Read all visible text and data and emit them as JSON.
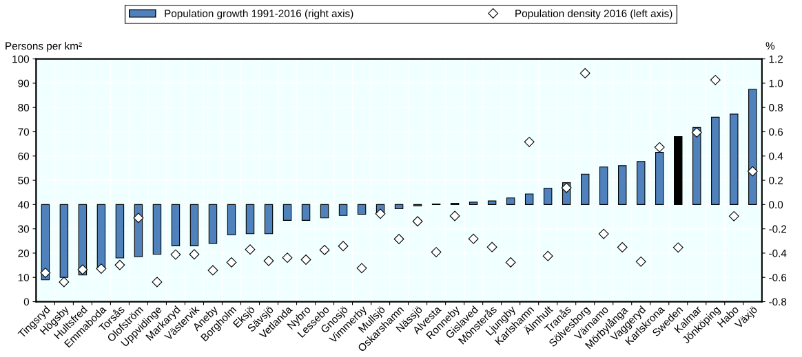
{
  "chart_data": {
    "type": "bar",
    "ylabel": "Persons per km²",
    "y2label": "%",
    "categories": [
      "Tingsryd",
      "Högsby",
      "Hultsfred",
      "Emmaboda",
      "Torsås",
      "Olofström",
      "Uppvidinge",
      "Markaryd",
      "Västervik",
      "Aneby",
      "Borgholm",
      "Eksjö",
      "Sävsjö",
      "Vetlanda",
      "Nybro",
      "Lessebo",
      "Gnosjö",
      "Vimmerby",
      "Mullsjö",
      "Oskarshamn",
      "Nässjö",
      "Alvesta",
      "Ronneby",
      "Gislaved",
      "Mönsterås",
      "Ljungby",
      "Karlshamn",
      "Älmhult",
      "Tranås",
      "Sölvesborg",
      "Värnamo",
      "Mörbylånga",
      "Vaggeryd",
      "Karlskrona",
      "Sweden",
      "Kalmar",
      "Jönköping",
      "Habo",
      "Växjö"
    ],
    "series": [
      {
        "name": "Population growth 1991-2016 (right axis)",
        "axis": "y2",
        "color": "#4f81bd",
        "colors": [
          "#4f81bd",
          "#4f81bd",
          "#4f81bd",
          "#4f81bd",
          "#4f81bd",
          "#4f81bd",
          "#4f81bd",
          "#4f81bd",
          "#4f81bd",
          "#4f81bd",
          "#4f81bd",
          "#4f81bd",
          "#4f81bd",
          "#4f81bd",
          "#4f81bd",
          "#4f81bd",
          "#4f81bd",
          "#4f81bd",
          "#4f81bd",
          "#4f81bd",
          "#4f81bd",
          "#4f81bd",
          "#4f81bd",
          "#4f81bd",
          "#4f81bd",
          "#4f81bd",
          "#4f81bd",
          "#4f81bd",
          "#4f81bd",
          "#4f81bd",
          "#4f81bd",
          "#4f81bd",
          "#4f81bd",
          "#4f81bd",
          "#000000",
          "#4f81bd",
          "#4f81bd",
          "#4f81bd",
          "#4f81bd"
        ],
        "values": [
          -0.62,
          -0.6,
          -0.58,
          -0.53,
          -0.44,
          -0.43,
          -0.41,
          -0.34,
          -0.34,
          -0.32,
          -0.25,
          -0.24,
          -0.24,
          -0.13,
          -0.13,
          -0.11,
          -0.09,
          -0.08,
          -0.07,
          -0.035,
          -0.01,
          0.005,
          0.01,
          0.02,
          0.03,
          0.055,
          0.087,
          0.135,
          0.18,
          0.25,
          0.31,
          0.32,
          0.355,
          0.43,
          0.56,
          0.635,
          0.72,
          0.745,
          0.95
        ]
      },
      {
        "name": "Population density 2016 (left axis)",
        "type": "scatter",
        "axis": "y",
        "marker": "diamond",
        "color": "#ffffff",
        "values": [
          11.9,
          8.1,
          13.2,
          13.6,
          15.1,
          34.5,
          8.1,
          19.4,
          19.5,
          12.9,
          16.2,
          21.5,
          16.8,
          18.1,
          17.3,
          21.3,
          22.9,
          13.8,
          36.2,
          25.8,
          33.1,
          20.4,
          35.3,
          25.9,
          22.5,
          16.2,
          65.8,
          18.8,
          46.9,
          94.1,
          27.9,
          22.4,
          16.5,
          63.6,
          22.3,
          69.7,
          91.3,
          35.2,
          53.7
        ]
      }
    ],
    "ylim": [
      0,
      100
    ],
    "yticks": [
      0,
      10,
      20,
      30,
      40,
      50,
      60,
      70,
      80,
      90,
      100
    ],
    "y2lim": [
      -0.8,
      1.2
    ],
    "y2ticks": [
      {
        "value": -0.8,
        "label": "-0.8"
      },
      {
        "value": -0.6,
        "label": "-0.6"
      },
      {
        "value": -0.4,
        "label": "-0.4"
      },
      {
        "value": -0.2,
        "label": "-0.2"
      },
      {
        "value": 0,
        "label": "0.0"
      },
      {
        "value": 0.2,
        "label": "0.2"
      },
      {
        "value": 0.4,
        "label": "0.4"
      },
      {
        "value": 0.6,
        "label": "0.6"
      },
      {
        "value": 0.8,
        "label": "0.8"
      },
      {
        "value": 1.0,
        "label": "1.0"
      },
      {
        "value": 1.2,
        "label": "1.2"
      }
    ],
    "grid": true,
    "legend": "top"
  }
}
